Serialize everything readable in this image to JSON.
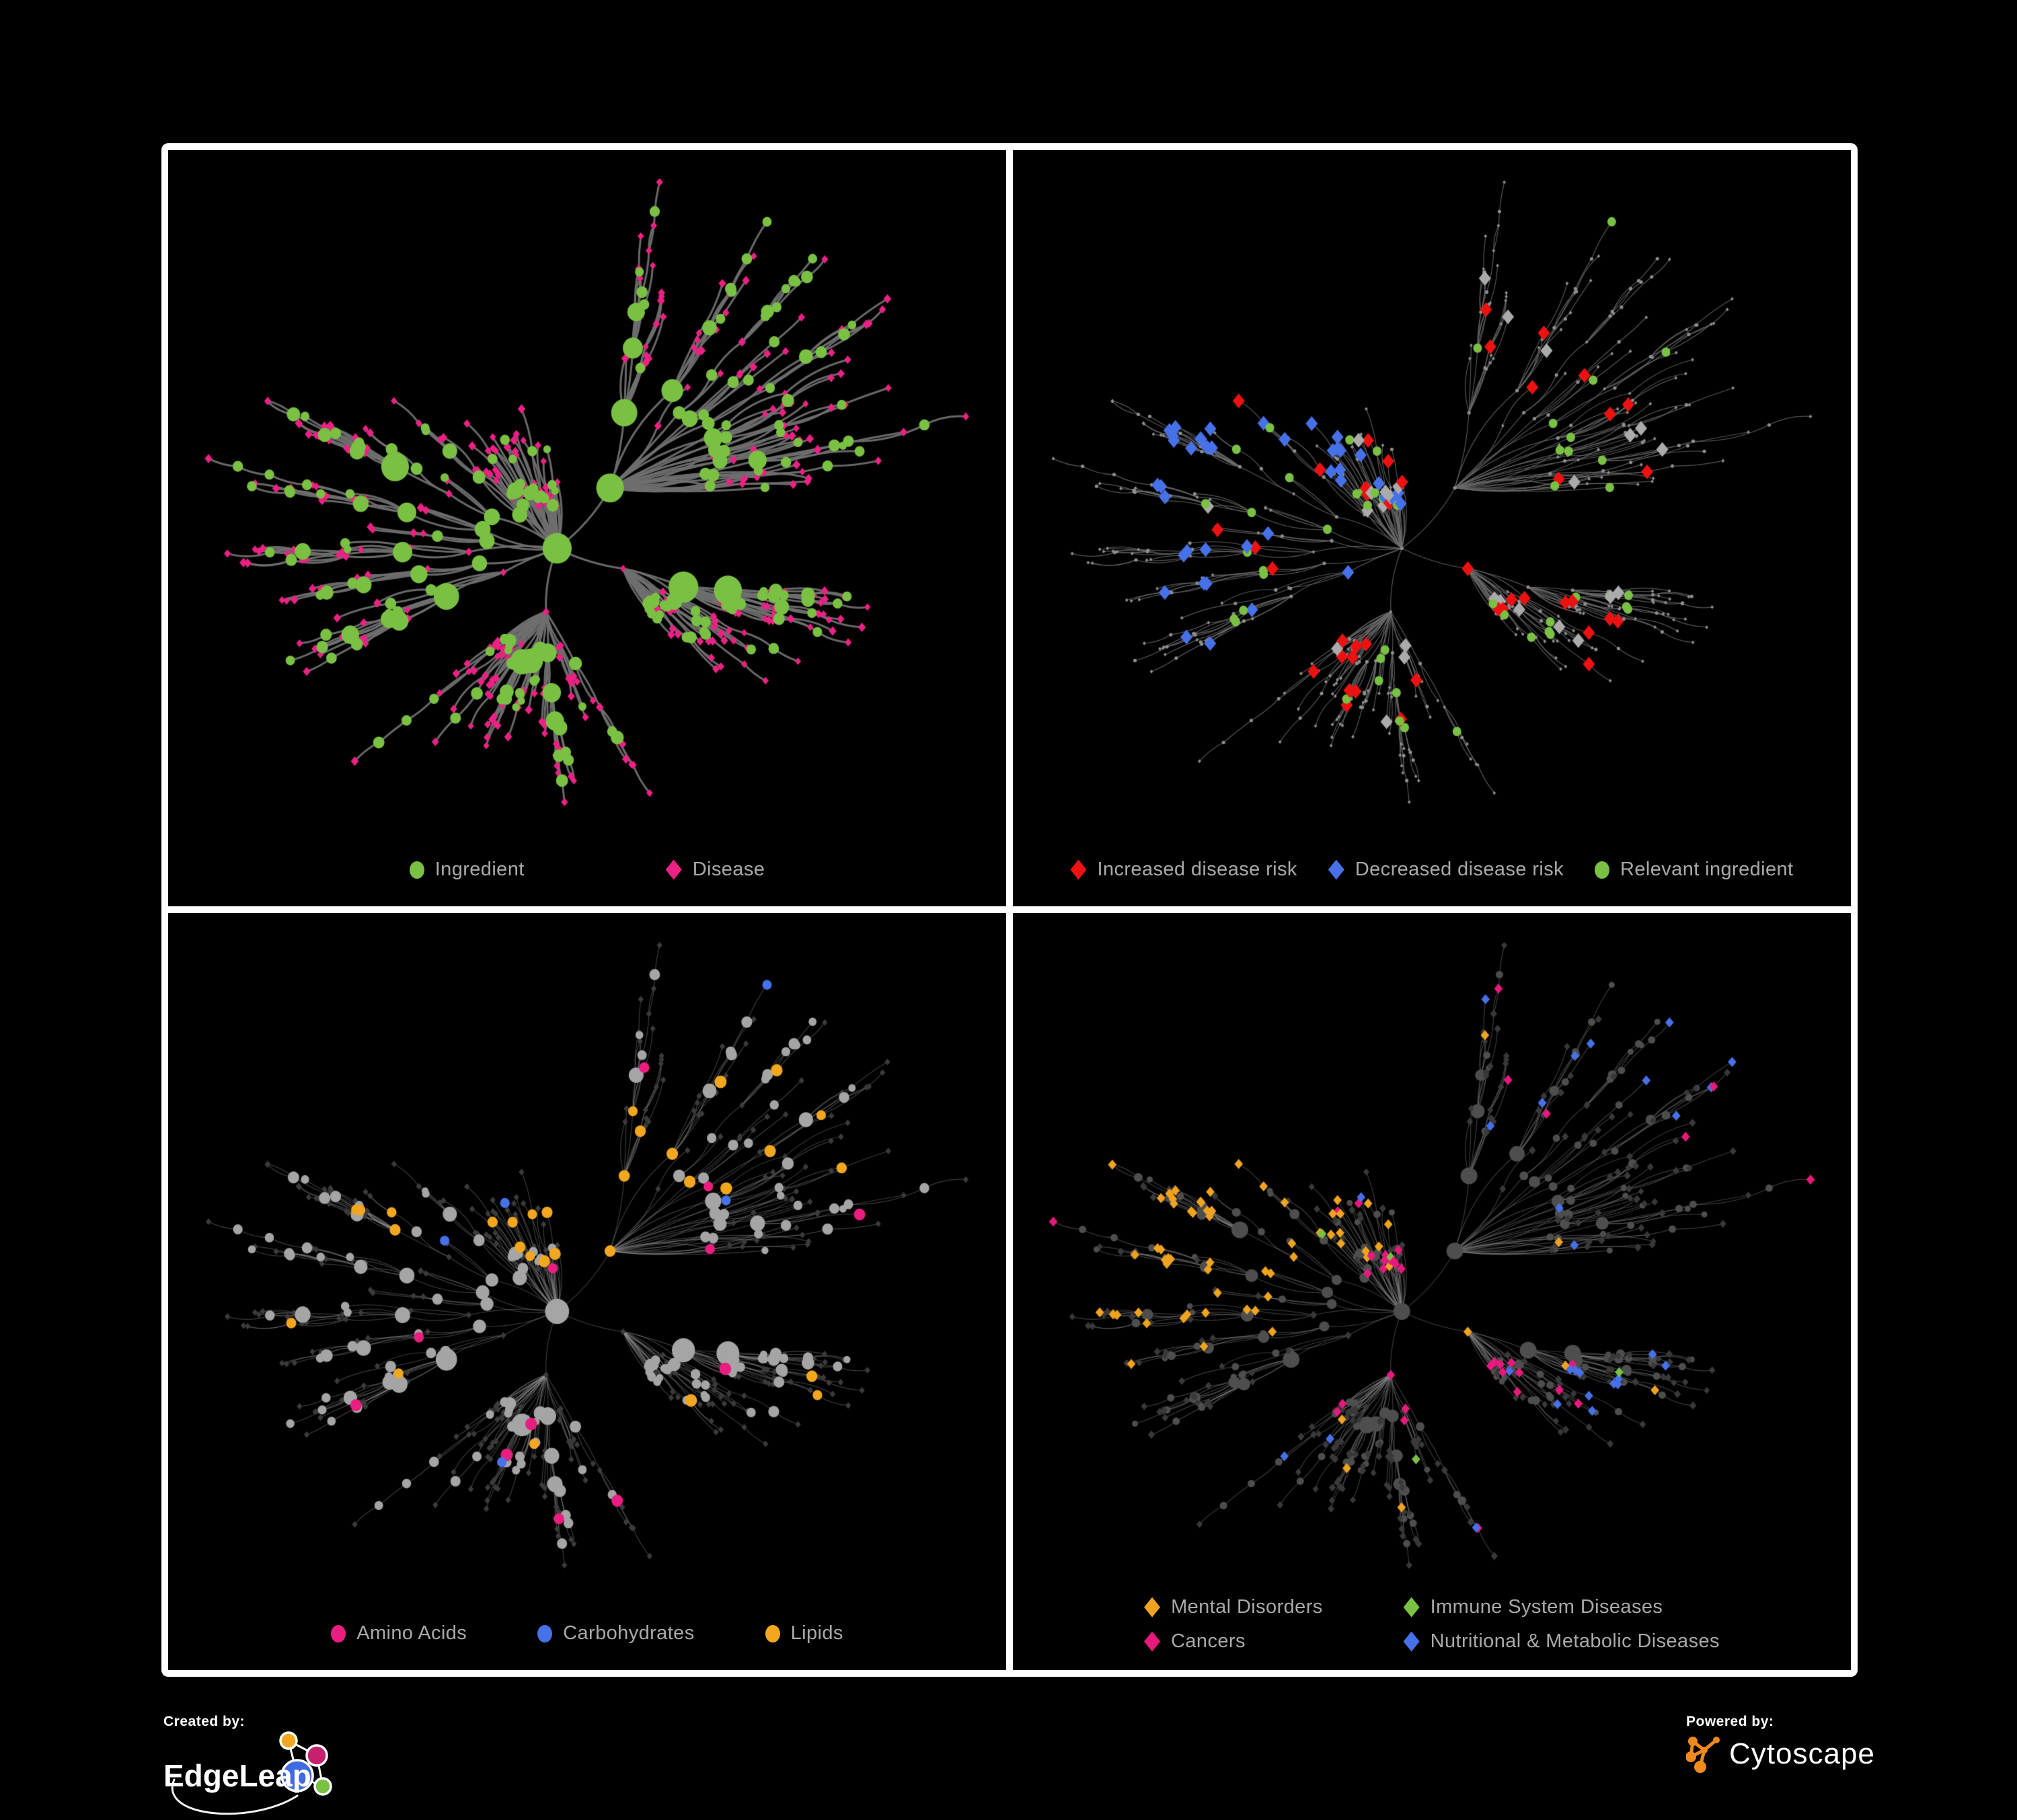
{
  "figure": {
    "background": "#000000",
    "frame_color": "#ffffff"
  },
  "network_layout": {
    "seed": 13,
    "nodes": 640
  },
  "panels": [
    {
      "id": "ingredient-disease",
      "legend": {
        "items": [
          {
            "shape": "circle",
            "color": "#7AC143",
            "label": "Ingredient"
          },
          {
            "shape": "diamond",
            "color": "#EC2185",
            "label": "Disease"
          }
        ]
      },
      "network": {
        "edge": {
          "color": "#6F6F6F",
          "width": 3.0,
          "alpha": 0.95
        },
        "colors": {
          "ingredient": "#7AC143",
          "disease": "#EC2185"
        }
      }
    },
    {
      "id": "disease-risk",
      "legend": {
        "items": [
          {
            "shape": "diamond",
            "color": "#EE1111",
            "label": "Increased disease risk"
          },
          {
            "shape": "diamond",
            "color": "#4671E8",
            "label": "Decreased disease risk"
          },
          {
            "shape": "circle",
            "color": "#7AC143",
            "label": "Relevant ingredient"
          }
        ]
      },
      "network": {
        "edge": {
          "color": "#6C6C6C",
          "width": 1.2,
          "alpha": 0.8
        },
        "colors": {
          "base": "#8E8E8E",
          "increased": "#EE1111",
          "decreased": "#4671E8",
          "neutral": "#ABABAB",
          "ingredient": "#7AC143"
        }
      }
    },
    {
      "id": "compound-classes",
      "legend": {
        "items": [
          {
            "shape": "circle",
            "color": "#EA1E80",
            "label": "Amino Acids"
          },
          {
            "shape": "circle",
            "color": "#4671E8",
            "label": "Carbohydrates"
          },
          {
            "shape": "circle",
            "color": "#F2A71E",
            "label": "Lipids"
          }
        ]
      },
      "network": {
        "edge": {
          "color": "#9B9B9B",
          "width": 1.2,
          "alpha": 0.38
        },
        "colors": {
          "circle": "#A5A5A5",
          "diamond": "#3B3B3B",
          "amino": "#EA1E80",
          "carbo": "#4671E8",
          "lipid": "#F2A71E"
        }
      }
    },
    {
      "id": "disease-classes",
      "legend": {
        "items": [
          {
            "shape": "diamond",
            "color": "#EFA31F",
            "label": "Mental Disorders"
          },
          {
            "shape": "diamond",
            "color": "#7AC143",
            "label": "Immune System Diseases"
          },
          {
            "shape": "diamond",
            "color": "#E8197D",
            "label": "Cancers"
          },
          {
            "shape": "diamond",
            "color": "#4671E8",
            "label": "Nutritional & Metabolic Diseases"
          }
        ]
      },
      "network": {
        "edge": {
          "color": "#8A8A8A",
          "width": 1.2,
          "alpha": 0.42
        },
        "colors": {
          "circle": "#4E4E4E",
          "diamond": "#393939",
          "mental": "#EFA31F",
          "immune": "#7AC143",
          "cancer": "#E8197D",
          "nutritional": "#4671E8"
        }
      }
    }
  ],
  "footer": {
    "created_by": {
      "label": "Created by:",
      "name": "EdgeLeap"
    },
    "powered_by": {
      "label": "Powered by:",
      "name": "Cytoscape"
    },
    "edgeleap_logo_colors": {
      "orange": "#F2A71E",
      "magenta": "#C4216E",
      "blue": "#4169E1",
      "green": "#7AC143"
    },
    "cytoscape_logo_color": "#F08A1D"
  }
}
